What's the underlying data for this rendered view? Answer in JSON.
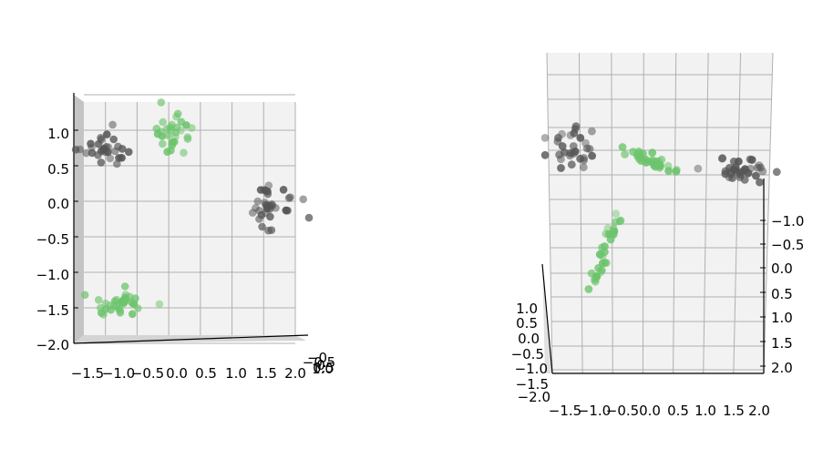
{
  "chart_data": [
    {
      "type": "scatter",
      "view": "3d-orthogonal",
      "title": "",
      "xlabel": "",
      "ylabel": "",
      "zlabel": "",
      "grid": true,
      "pane_color": "#f2f2f2",
      "grid_color": "#b0b0b0",
      "xlim": [
        -1.5,
        2.0
      ],
      "zlim": [
        -2.0,
        1.5
      ],
      "x_ticks": [
        "−1.5",
        "−1.0",
        "−0.5",
        "0.0",
        "0.5",
        "1.0",
        "1.5",
        "2.0"
      ],
      "z_ticks": [
        "−2.0",
        "−1.5",
        "−1.0",
        "−0.5",
        "0.0",
        "0.5",
        "1.0"
      ],
      "depth_ticks": [
        "−0",
        "−0.5",
        "0",
        "0.5",
        "1.0"
      ],
      "series": [
        {
          "color": "#555555",
          "clusters": [
            {
              "cx": -0.95,
              "cz": 0.75,
              "sx": 0.2,
              "sz": 0.14,
              "n": 30
            },
            {
              "cx": 1.6,
              "cz": -0.05,
              "sx": 0.15,
              "sz": 0.17,
              "n": 35
            }
          ]
        },
        {
          "color": "#6cc46c",
          "clusters": [
            {
              "cx": 0.05,
              "cz": 0.95,
              "sx": 0.13,
              "sz": 0.14,
              "n": 30
            },
            {
              "cx": -0.75,
              "cz": -1.45,
              "sx": 0.17,
              "sz": 0.11,
              "n": 35
            }
          ]
        }
      ]
    },
    {
      "type": "scatter",
      "view": "3d-perspective",
      "title": "",
      "xlabel": "",
      "ylabel": "",
      "zlabel": "",
      "grid": true,
      "pane_color": "#f2f2f2",
      "grid_color": "#b0b0b0",
      "xlim": [
        -1.5,
        2.0
      ],
      "ylim": [
        -2.0,
        1.0
      ],
      "zlim": [
        -1.0,
        2.0
      ],
      "x_ticks": [
        "−1.5",
        "−1.0",
        "−0.5",
        "0.0",
        "0.5",
        "1.0",
        "1.5",
        "2.0"
      ],
      "y_ticks": [
        "−2.0",
        "−1.5",
        "−1.0",
        "−0.5",
        "0.0",
        "0.5",
        "1.0"
      ],
      "z_ticks": [
        "−1.0",
        "−0.5",
        "0.0",
        "0.5",
        "1.0",
        "1.5",
        "2.0"
      ],
      "series": [
        {
          "color": "#555555",
          "clusters": [
            {
              "cx": -1.2,
              "cz": -1.5,
              "sx": 0.2,
              "sz": 0.25,
              "n": 30
            },
            {
              "cx": 1.6,
              "cz": -1.1,
              "sx": 0.22,
              "sz": 0.12,
              "n": 35
            }
          ]
        },
        {
          "color": "#6cc46c",
          "clusters": [
            {
              "cx": 0.1,
              "cz": -1.3,
              "sx": 0.2,
              "sz": 0.1,
              "n": 35
            },
            {
              "cx": -0.65,
              "cz": 0.6,
              "sx": 0.15,
              "sz": 0.45,
              "n": 32
            }
          ]
        }
      ]
    }
  ]
}
